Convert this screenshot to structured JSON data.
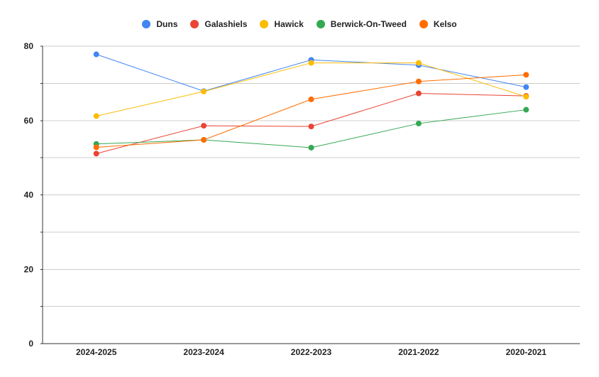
{
  "chart_data": {
    "type": "line",
    "categories": [
      "2024-2025",
      "2023-2024",
      "2022-2023",
      "2021-2022",
      "2020-2021"
    ],
    "ylim": [
      0,
      80
    ],
    "yticks": [
      0,
      20,
      40,
      60,
      80
    ],
    "grid": true,
    "legend_position": "top",
    "series": [
      {
        "name": "Duns",
        "color": "#4285f4",
        "values": [
          77.8,
          67.9,
          76.3,
          74.9,
          69.0
        ]
      },
      {
        "name": "Galashiels",
        "color": "#ea4335",
        "values": [
          51.1,
          58.6,
          58.4,
          67.3,
          66.6
        ]
      },
      {
        "name": "Hawick",
        "color": "#fbbc04",
        "values": [
          61.2,
          67.8,
          75.5,
          75.5,
          66.4
        ]
      },
      {
        "name": "Berwick-On-Tweed",
        "color": "#34a853",
        "values": [
          53.7,
          54.8,
          52.7,
          59.2,
          62.9
        ]
      },
      {
        "name": "Kelso",
        "color": "#ff6d01",
        "values": [
          52.8,
          54.8,
          65.7,
          70.5,
          72.3
        ]
      }
    ]
  }
}
